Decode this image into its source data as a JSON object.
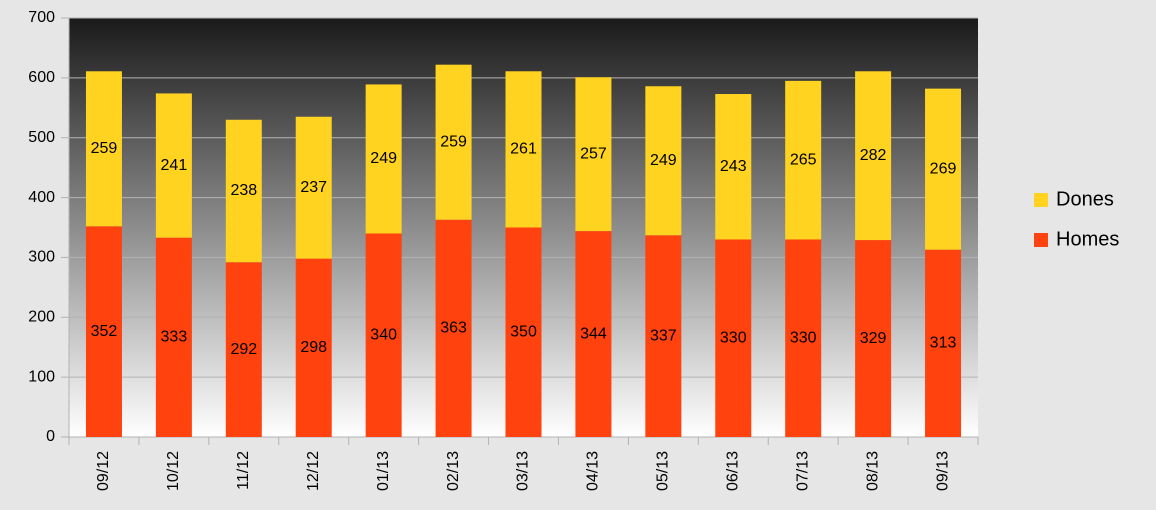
{
  "chart_data": {
    "type": "bar",
    "stacked": true,
    "categories": [
      "09/12",
      "10/12",
      "11/12",
      "12/12",
      "01/13",
      "02/13",
      "03/13",
      "04/13",
      "05/13",
      "06/13",
      "07/13",
      "08/13",
      "09/13"
    ],
    "series": [
      {
        "name": "Homes",
        "color": "#ff420e",
        "values": [
          352,
          333,
          292,
          298,
          340,
          363,
          350,
          344,
          337,
          330,
          330,
          329,
          313
        ]
      },
      {
        "name": "Dones",
        "color": "#ffd320",
        "values": [
          259,
          241,
          238,
          237,
          249,
          259,
          261,
          257,
          249,
          243,
          265,
          282,
          269
        ]
      }
    ],
    "ylim": [
      0,
      700
    ],
    "yticks": [
      0,
      100,
      200,
      300,
      400,
      500,
      600,
      700
    ],
    "grid": true,
    "legend": "right"
  }
}
